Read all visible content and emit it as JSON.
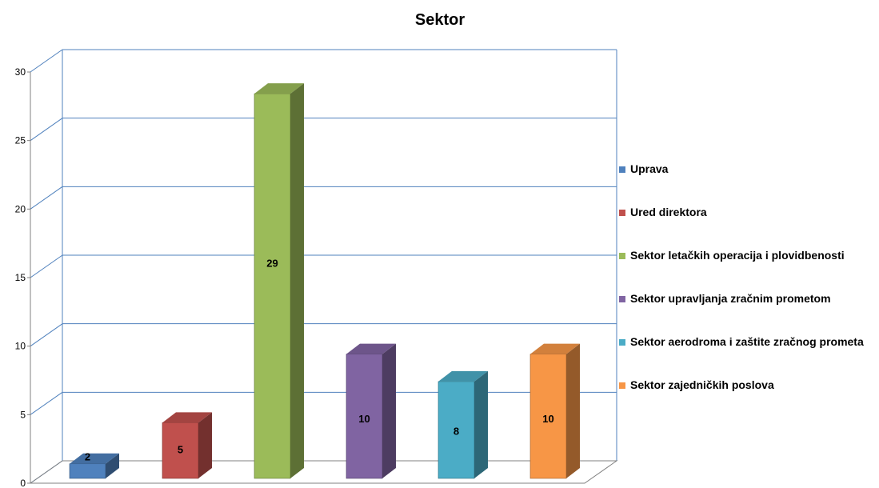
{
  "chart_data": {
    "type": "bar",
    "title": "Sektor",
    "xlabel": "",
    "ylabel": "",
    "ylim": [
      0,
      30
    ],
    "yticks": [
      0,
      5,
      10,
      15,
      20,
      25,
      30
    ],
    "grid": true,
    "legend_position": "right",
    "categories": [
      "Uprava",
      "Ured direktora",
      "Sektor letačkih operacija i plovidbenosti",
      "Sektor upravljanja zračnim prometom",
      "Sektor aerodroma i zaštite zračnog prometa",
      "Sektor zajedničkih poslova"
    ],
    "values": [
      2,
      5,
      29,
      10,
      8,
      10
    ],
    "colors": [
      "#4F81BD",
      "#C0504D",
      "#9BBB59",
      "#8064A2",
      "#4BACC6",
      "#F79646"
    ]
  }
}
